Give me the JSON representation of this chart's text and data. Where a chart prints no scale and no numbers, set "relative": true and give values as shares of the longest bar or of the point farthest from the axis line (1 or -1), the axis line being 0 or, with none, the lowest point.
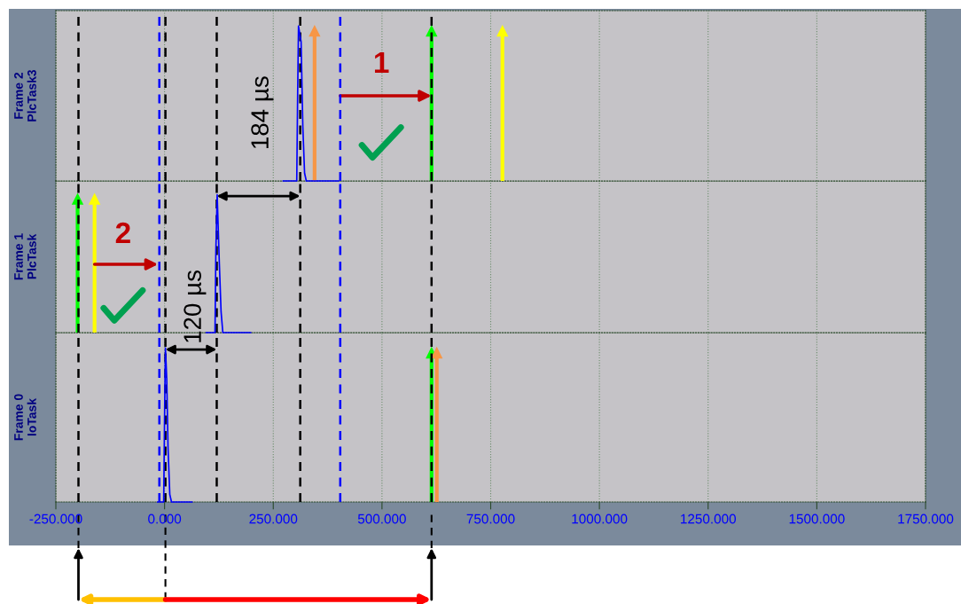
{
  "chart_data": [
    {
      "type": "line",
      "relative": true,
      "ylabel": "Frame 2\nPlcTask3",
      "xlim": [
        -250,
        1750
      ],
      "xticks": [
        {
          "value": -250,
          "label": null
        },
        {
          "value": 0,
          "label": null
        },
        {
          "value": 250,
          "label": null
        },
        {
          "value": 500,
          "label": null
        },
        {
          "value": 750,
          "label": null
        },
        {
          "value": 1000,
          "label": null
        },
        {
          "value": 1250,
          "label": null
        },
        {
          "value": 1500,
          "label": null
        },
        {
          "value": 1750,
          "label": null
        }
      ],
      "grid": "x",
      "tick_labels": false,
      "series": [
        {
          "color": "#0000ff",
          "x": [
            273,
            300,
            304,
            306,
            308,
            314,
            318,
            322,
            326,
            400
          ],
          "values": [
            0,
            0,
            0,
            0.55,
            1,
            0.9,
            0.35,
            0.05,
            0,
            0
          ]
        }
      ],
      "ref_lines": [
        {
          "axis": "x",
          "value": -198,
          "color": "#000000",
          "line_style": "dashed"
        },
        {
          "axis": "x",
          "value": 2,
          "color": "#000000",
          "line_style": "dashed"
        },
        {
          "axis": "x",
          "value": 120,
          "color": "#000000",
          "line_style": "dashed"
        },
        {
          "axis": "x",
          "value": 312,
          "color": "#000000",
          "line_style": "dashed"
        },
        {
          "axis": "x",
          "value": 614,
          "color": "#000000",
          "line_style": "dashed"
        },
        {
          "axis": "x",
          "value": -12,
          "color": "#0000ff",
          "line_style": "dashed"
        },
        {
          "axis": "x",
          "value": 404,
          "color": "#0000ff",
          "line_style": "dashed"
        },
        {
          "axis": "x",
          "value": 345,
          "color": "#f79646",
          "line_style": "solid"
        },
        {
          "axis": "x",
          "value": 614,
          "color": "#00ff00",
          "line_style": "solid"
        },
        {
          "axis": "x",
          "value": 777,
          "color": "#ffff00",
          "line_style": "solid"
        }
      ],
      "annotations": [
        "1",
        "184 µs"
      ]
    },
    {
      "type": "line",
      "relative": true,
      "ylabel": "Frame 1\nPlcTask",
      "xlim": [
        -250,
        1750
      ],
      "xticks": [
        {
          "value": -250,
          "label": null
        },
        {
          "value": 0,
          "label": null
        },
        {
          "value": 250,
          "label": null
        },
        {
          "value": 500,
          "label": null
        },
        {
          "value": 750,
          "label": null
        },
        {
          "value": 1000,
          "label": null
        },
        {
          "value": 1250,
          "label": null
        },
        {
          "value": 1500,
          "label": null
        },
        {
          "value": 1750,
          "label": null
        }
      ],
      "grid": "x",
      "tick_labels": false,
      "series": [
        {
          "color": "#0000ff",
          "x": [
            96,
            114,
            116,
            118,
            121,
            126,
            130,
            134,
            198
          ],
          "values": [
            0,
            0,
            0,
            0.6,
            1,
            0.5,
            0.15,
            0,
            0
          ]
        }
      ],
      "ref_lines": [
        {
          "axis": "x",
          "value": -198,
          "color": "#000000",
          "line_style": "dashed"
        },
        {
          "axis": "x",
          "value": 2,
          "color": "#000000",
          "line_style": "dashed"
        },
        {
          "axis": "x",
          "value": 120,
          "color": "#000000",
          "line_style": "dashed"
        },
        {
          "axis": "x",
          "value": 312,
          "color": "#000000",
          "line_style": "dashed"
        },
        {
          "axis": "x",
          "value": 614,
          "color": "#000000",
          "line_style": "dashed"
        },
        {
          "axis": "x",
          "value": -12,
          "color": "#0000ff",
          "line_style": "dashed"
        },
        {
          "axis": "x",
          "value": 404,
          "color": "#0000ff",
          "line_style": "dashed"
        },
        {
          "axis": "x",
          "value": -200,
          "color": "#00ff00",
          "line_style": "solid"
        },
        {
          "axis": "x",
          "value": -161,
          "color": "#ffff00",
          "line_style": "solid"
        }
      ],
      "annotations": [
        "2",
        "120 µs"
      ]
    },
    {
      "type": "line",
      "relative": true,
      "ylabel": "Frame 0\nIoTask",
      "xlim": [
        -250,
        1750
      ],
      "xticks": [
        {
          "value": -250,
          "label": "-250.000"
        },
        {
          "value": 0,
          "label": "0.000"
        },
        {
          "value": 250,
          "label": "250.000"
        },
        {
          "value": 500,
          "label": "500.000"
        },
        {
          "value": 750,
          "label": "750.000"
        },
        {
          "value": 1000,
          "label": "1000.000"
        },
        {
          "value": 1250,
          "label": "1250.000"
        },
        {
          "value": 1500,
          "label": "1500.000"
        },
        {
          "value": 1750,
          "label": "1750.000"
        }
      ],
      "grid": "x",
      "tick_labels": "x",
      "series": [
        {
          "color": "#0000ff",
          "x": [
            -16,
            -4,
            -2,
            0,
            2,
            5,
            8,
            12,
            16,
            63
          ],
          "values": [
            0,
            0,
            0,
            0.55,
            1,
            0.8,
            0.35,
            0.05,
            0,
            0
          ]
        }
      ],
      "ref_lines": [
        {
          "axis": "x",
          "value": -198,
          "color": "#000000",
          "line_style": "dashed"
        },
        {
          "axis": "x",
          "value": 2,
          "color": "#000000",
          "line_style": "dashed"
        },
        {
          "axis": "x",
          "value": 120,
          "color": "#000000",
          "line_style": "dashed"
        },
        {
          "axis": "x",
          "value": 312,
          "color": "#000000",
          "line_style": "dashed"
        },
        {
          "axis": "x",
          "value": 614,
          "color": "#000000",
          "line_style": "dashed"
        },
        {
          "axis": "x",
          "value": -12,
          "color": "#0000ff",
          "line_style": "dashed"
        },
        {
          "axis": "x",
          "value": 404,
          "color": "#0000ff",
          "line_style": "dashed"
        },
        {
          "axis": "x",
          "value": 614,
          "color": "#00ff00",
          "line_style": "solid"
        },
        {
          "axis": "x",
          "value": 626,
          "color": "#f79646",
          "line_style": "solid"
        }
      ]
    }
  ]
}
